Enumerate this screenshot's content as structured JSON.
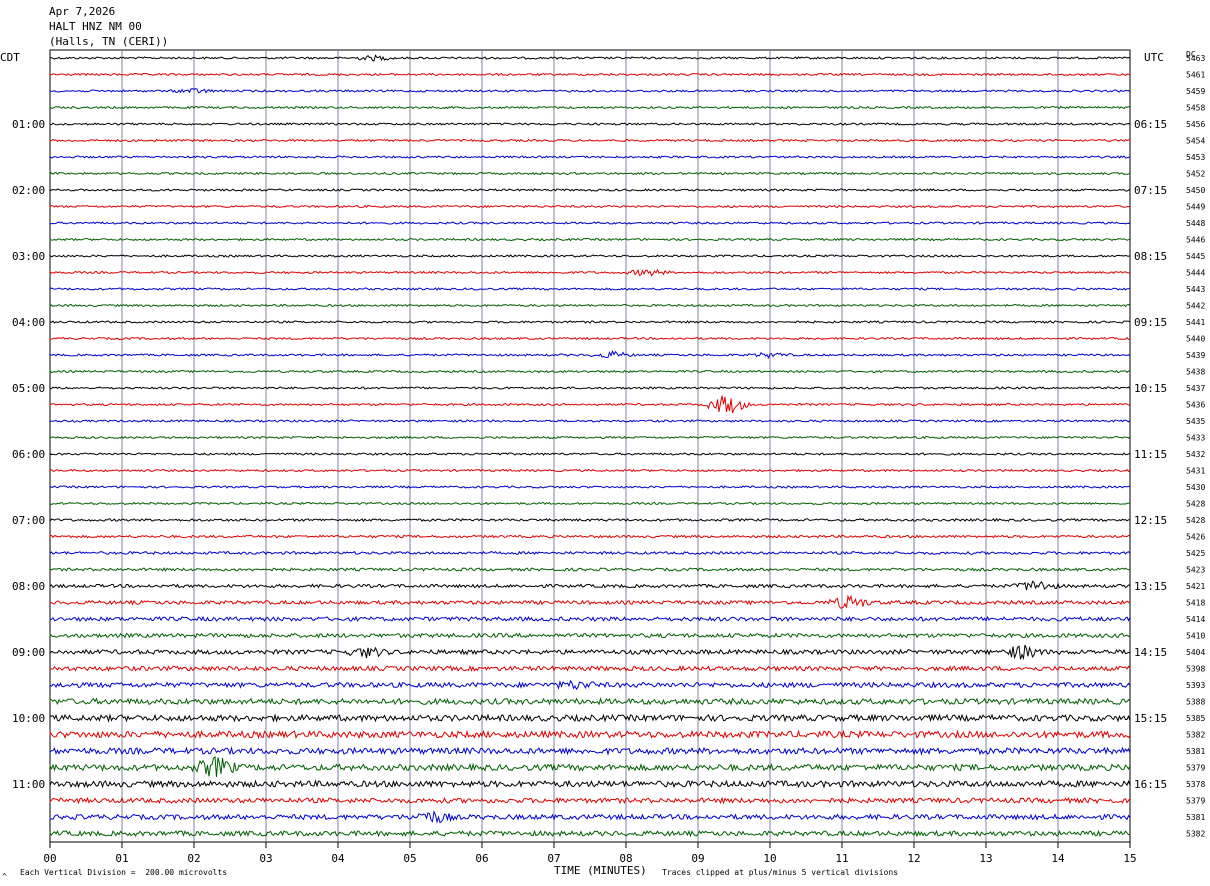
{
  "header": {
    "date": "Apr 7,2026",
    "station": "HALT HNZ NM 00",
    "location": "(Halls, TN (CERI))"
  },
  "left_label": "CDT",
  "right_label": "UTC",
  "dc_label": "DC",
  "footer": {
    "scale": "Each Vertical Division =  200.00 microvolts",
    "xlabel": "TIME (MINUTES)",
    "clip": "Traces clipped at plus/minus 5 vertical divisions",
    "mark": "^"
  },
  "colors": [
    "#000000",
    "#e00000",
    "#0000d0",
    "#006000"
  ],
  "chart_data": {
    "type": "line",
    "title": "HALT HNZ NM 00",
    "xlabel": "TIME (MINUTES)",
    "xlim": [
      0,
      15
    ],
    "x_ticks": [
      "00",
      "01",
      "02",
      "03",
      "04",
      "05",
      "06",
      "07",
      "08",
      "09",
      "10",
      "11",
      "12",
      "13",
      "14",
      "15"
    ],
    "left_time_labels": [
      "01:00",
      "02:00",
      "03:00",
      "04:00",
      "05:00",
      "06:00",
      "07:00",
      "08:00",
      "09:00",
      "10:00",
      "11:00"
    ],
    "right_time_labels": [
      "06:15",
      "07:15",
      "08:15",
      "09:15",
      "10:15",
      "11:15",
      "12:15",
      "13:15",
      "14:15",
      "15:15",
      "16:15"
    ],
    "dc_offsets": [
      "5463",
      "5461",
      "5459",
      "5458",
      "5456",
      "5454",
      "5453",
      "5452",
      "5450",
      "5449",
      "5448",
      "5446",
      "5445",
      "5444",
      "5443",
      "5442",
      "5441",
      "5440",
      "5439",
      "5438",
      "5437",
      "5436",
      "5435",
      "5433",
      "5432",
      "5431",
      "5430",
      "5428",
      "5428",
      "5426",
      "5425",
      "5423",
      "5421",
      "5418",
      "5414",
      "5410",
      "5404",
      "5398",
      "5393",
      "5388",
      "5385",
      "5382",
      "5381",
      "5379",
      "5378",
      "5379",
      "5381",
      "5382"
    ],
    "trace_noise": [
      1,
      1,
      1,
      1,
      1,
      1,
      1,
      1,
      1,
      1,
      1,
      1,
      1,
      1,
      1,
      1,
      1,
      1,
      1,
      1,
      1,
      1,
      1,
      1,
      1,
      1,
      1,
      1,
      1.2,
      1.2,
      1.3,
      1.4,
      1.6,
      1.8,
      2,
      2,
      2.2,
      2.2,
      2.4,
      2.8,
      3,
      3.2,
      3,
      3,
      3,
      2.4,
      2.4,
      2.4
    ],
    "events": [
      {
        "trace": 0,
        "minute": 4.5,
        "amp": 2
      },
      {
        "trace": 2,
        "minute": 2.0,
        "amp": 2
      },
      {
        "trace": 13,
        "minute": 8.3,
        "amp": 3
      },
      {
        "trace": 18,
        "minute": 7.8,
        "amp": 3
      },
      {
        "trace": 18,
        "minute": 10.0,
        "amp": 2
      },
      {
        "trace": 21,
        "minute": 9.4,
        "amp": 10
      },
      {
        "trace": 32,
        "minute": 13.7,
        "amp": 5
      },
      {
        "trace": 33,
        "minute": 11.1,
        "amp": 6
      },
      {
        "trace": 36,
        "minute": 4.4,
        "amp": 4
      },
      {
        "trace": 36,
        "minute": 13.5,
        "amp": 6
      },
      {
        "trace": 38,
        "minute": 7.3,
        "amp": 3
      },
      {
        "trace": 43,
        "minute": 2.3,
        "amp": 9
      },
      {
        "trace": 46,
        "minute": 5.3,
        "amp": 5
      }
    ]
  }
}
